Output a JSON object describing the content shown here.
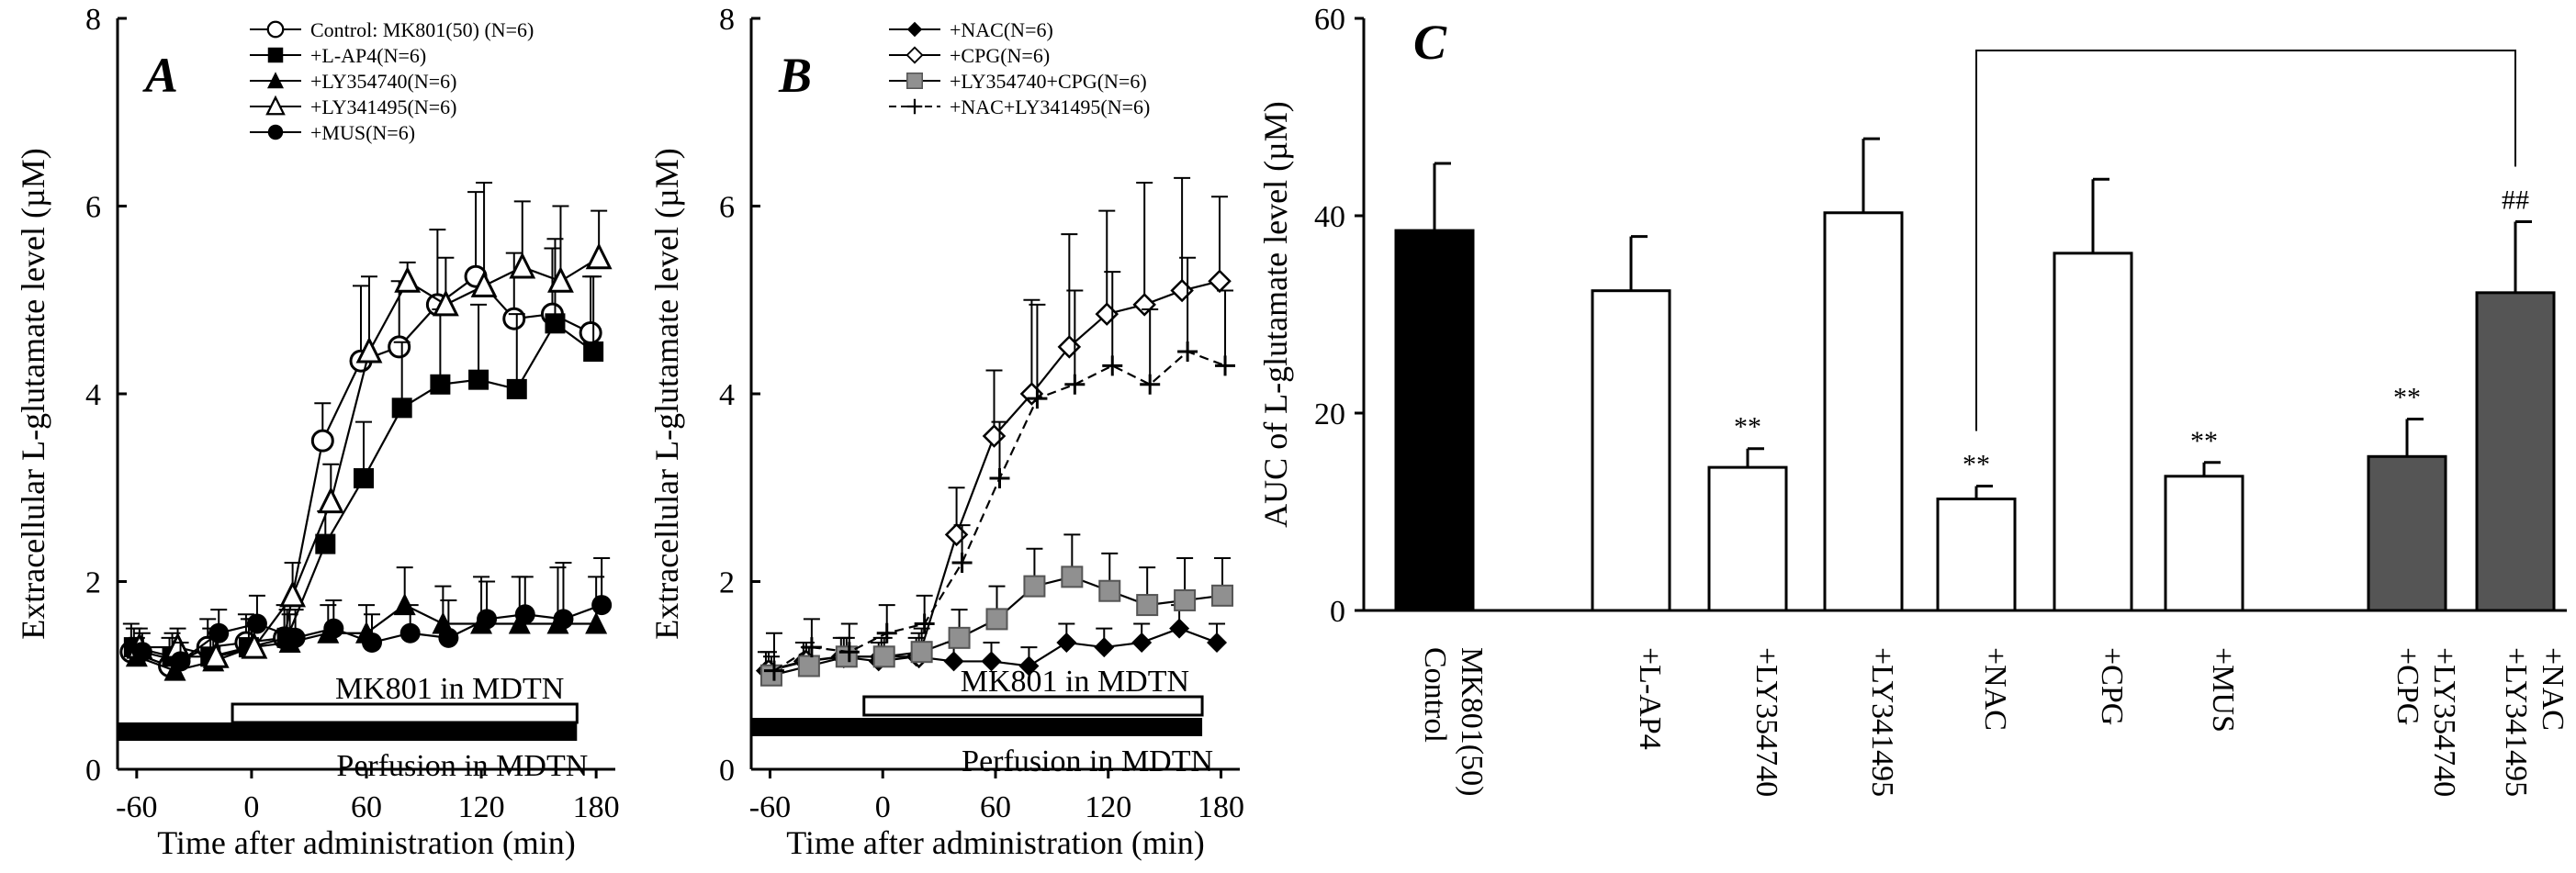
{
  "colors": {
    "black": "#000000",
    "gray": "#555555",
    "white": "#ffffff",
    "marker_gray": "#909090"
  },
  "chart_data": [
    {
      "panel": "A",
      "type": "line",
      "xlabel": "Time after administration (min)",
      "ylabel": "Extracellular L-glutamate level (µM)",
      "xticks": [
        "-60",
        "0",
        "60",
        "120",
        "180"
      ],
      "yticks": [
        "0",
        "2",
        "4",
        "6",
        "8"
      ],
      "xlim": [
        -70,
        190
      ],
      "ylim": [
        0,
        8
      ],
      "x": [
        -60,
        -40,
        -20,
        0,
        20,
        40,
        60,
        80,
        100,
        120,
        140,
        160,
        180
      ],
      "series": [
        {
          "name": "Control: MK801(50) (N=6)",
          "marker": "open-circle",
          "style": "solid",
          "values": [
            1.25,
            1.1,
            1.3,
            1.35,
            1.4,
            3.5,
            4.35,
            4.5,
            4.95,
            5.25,
            4.8,
            4.85,
            4.65
          ],
          "err": [
            0.3,
            0.3,
            0.3,
            0.3,
            0.35,
            0.4,
            0.8,
            0.7,
            0.8,
            0.9,
            0.7,
            0.7,
            0.6
          ]
        },
        {
          "name": "+L-AP4(N=6)",
          "marker": "filled-square",
          "style": "solid",
          "values": [
            1.3,
            1.2,
            1.2,
            1.3,
            1.4,
            2.4,
            3.1,
            3.85,
            4.1,
            4.15,
            4.05,
            4.75,
            4.45
          ],
          "err": [
            0.2,
            0.25,
            0.3,
            0.3,
            0.3,
            0.35,
            0.6,
            0.7,
            0.8,
            0.8,
            0.8,
            0.9,
            0.8
          ]
        },
        {
          "name": "+LY354740(N=6)",
          "marker": "filled-triangle",
          "style": "solid",
          "values": [
            1.2,
            1.05,
            1.15,
            1.3,
            1.35,
            1.45,
            1.45,
            1.75,
            1.55,
            1.55,
            1.55,
            1.55,
            1.55
          ],
          "err": [
            0.2,
            0.2,
            0.25,
            0.3,
            0.3,
            0.3,
            0.3,
            0.4,
            0.4,
            0.5,
            0.5,
            0.6,
            0.5
          ]
        },
        {
          "name": "+LY341495(N=6)",
          "marker": "open-triangle",
          "style": "solid",
          "values": [
            1.3,
            1.3,
            1.2,
            1.3,
            1.85,
            2.85,
            4.45,
            5.2,
            4.95,
            5.15,
            5.35,
            5.2,
            5.45
          ],
          "err": [
            0.2,
            0.2,
            0.25,
            0.3,
            0.35,
            0.4,
            0.8,
            0.2,
            0.5,
            1.1,
            0.7,
            0.8,
            0.5
          ]
        },
        {
          "name": "+MUS(N=6)",
          "marker": "filled-circle",
          "style": "solid",
          "values": [
            1.25,
            1.15,
            1.45,
            1.55,
            1.4,
            1.5,
            1.35,
            1.45,
            1.4,
            1.6,
            1.65,
            1.6,
            1.75
          ],
          "err": [
            0.2,
            0.2,
            0.25,
            0.3,
            0.3,
            0.3,
            0.3,
            0.3,
            0.4,
            0.4,
            0.4,
            0.6,
            0.5
          ]
        }
      ],
      "annotations": [
        "MK801 in MDTN",
        "Perfusion in MDTN"
      ],
      "mk801_bar_min": [
        -10,
        170
      ],
      "perfusion_bar_min": [
        -70,
        170
      ]
    },
    {
      "panel": "B",
      "type": "line",
      "xlabel": "Time after administration (min)",
      "ylabel": "Extracellular L-glutamate level (µM)",
      "xticks": [
        "-60",
        "0",
        "60",
        "120",
        "180"
      ],
      "yticks": [
        "0",
        "2",
        "4",
        "6",
        "8"
      ],
      "xlim": [
        -70,
        190
      ],
      "ylim": [
        0,
        8
      ],
      "x": [
        -60,
        -40,
        -20,
        0,
        20,
        40,
        60,
        80,
        100,
        120,
        140,
        160,
        180
      ],
      "series": [
        {
          "name": "+NAC(N=6)",
          "marker": "filled-diamond",
          "style": "solid",
          "values": [
            1.05,
            1.15,
            1.2,
            1.15,
            1.2,
            1.15,
            1.15,
            1.1,
            1.35,
            1.3,
            1.35,
            1.5,
            1.35
          ],
          "err": [
            0.2,
            0.2,
            0.2,
            0.2,
            0.2,
            0.2,
            0.2,
            0.2,
            0.2,
            0.2,
            0.2,
            0.25,
            0.2
          ]
        },
        {
          "name": "+CPG(N=6)",
          "marker": "open-diamond",
          "style": "solid",
          "values": [
            1.05,
            1.15,
            1.2,
            1.2,
            1.2,
            2.5,
            3.55,
            4.0,
            4.5,
            4.85,
            4.95,
            5.1,
            5.2
          ],
          "err": [
            0.2,
            0.2,
            0.2,
            0.2,
            0.25,
            0.5,
            0.7,
            1.0,
            1.2,
            1.1,
            1.3,
            1.2,
            0.9
          ]
        },
        {
          "name": "+LY354740+CPG(N=6)",
          "marker": "gray-square",
          "style": "solid",
          "values": [
            1.0,
            1.1,
            1.2,
            1.2,
            1.25,
            1.4,
            1.6,
            1.95,
            2.05,
            1.9,
            1.75,
            1.8,
            1.85
          ],
          "err": [
            0.2,
            0.2,
            0.2,
            0.2,
            0.25,
            0.3,
            0.35,
            0.4,
            0.45,
            0.4,
            0.4,
            0.45,
            0.4
          ]
        },
        {
          "name": "+NAC+LY341495(N=6)",
          "marker": "plus",
          "style": "dashed",
          "values": [
            1.05,
            1.3,
            1.25,
            1.45,
            1.55,
            2.2,
            3.1,
            3.95,
            4.1,
            4.3,
            4.1,
            4.45,
            4.3
          ],
          "err": [
            0.4,
            0.3,
            0.3,
            0.3,
            0.3,
            0.4,
            0.6,
            1.0,
            1.0,
            1.0,
            0.8,
            1.0,
            0.8
          ]
        }
      ],
      "annotations": [
        "MK801 in MDTN",
        "Perfusion in MDTN"
      ],
      "mk801_bar_min": [
        -10,
        170
      ],
      "perfusion_bar_min": [
        -70,
        170
      ]
    },
    {
      "panel": "C",
      "type": "bar",
      "ylabel": "AUC of L-glutamate level (µM)",
      "yticks": [
        "0",
        "20",
        "40",
        "60"
      ],
      "ylim": [
        0,
        60
      ],
      "categories": [
        {
          "lines": [
            "MK801(50)",
            "Control"
          ]
        },
        {
          "lines": [
            "+L-AP4"
          ]
        },
        {
          "lines": [
            "+LY354740"
          ]
        },
        {
          "lines": [
            "+LY341495"
          ]
        },
        {
          "lines": [
            "+NAC"
          ]
        },
        {
          "lines": [
            "+CPG"
          ]
        },
        {
          "lines": [
            "+MUS"
          ]
        },
        {
          "lines": [
            "+LY354740",
            "+CPG"
          ]
        },
        {
          "lines": [
            "+NAC",
            "+LY341495"
          ]
        }
      ],
      "values": [
        38.5,
        32.4,
        14.5,
        40.3,
        11.3,
        36.2,
        13.6,
        15.6,
        32.2
      ],
      "err": [
        6.8,
        5.5,
        1.9,
        7.5,
        1.3,
        7.5,
        1.4,
        3.8,
        7.2
      ],
      "fills": [
        "black",
        "white",
        "white",
        "white",
        "white",
        "white",
        "white",
        "gray",
        "gray"
      ],
      "significance": [
        "",
        "",
        "**",
        "",
        "**",
        "",
        "**",
        "**",
        "##"
      ],
      "bracket": {
        "from": "+NAC",
        "to": "+NAC+LY341495"
      }
    }
  ]
}
